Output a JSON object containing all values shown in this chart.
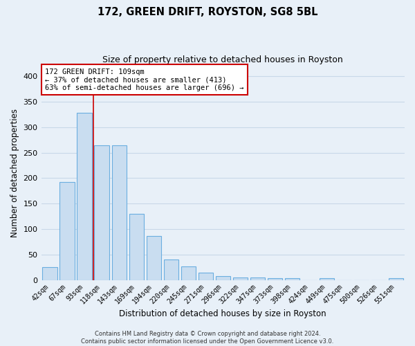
{
  "title1": "172, GREEN DRIFT, ROYSTON, SG8 5BL",
  "title2": "Size of property relative to detached houses in Royston",
  "xlabel": "Distribution of detached houses by size in Royston",
  "ylabel": "Number of detached properties",
  "bin_labels": [
    "42sqm",
    "67sqm",
    "93sqm",
    "118sqm",
    "143sqm",
    "169sqm",
    "194sqm",
    "220sqm",
    "245sqm",
    "271sqm",
    "296sqm",
    "322sqm",
    "347sqm",
    "373sqm",
    "398sqm",
    "424sqm",
    "449sqm",
    "475sqm",
    "500sqm",
    "526sqm",
    "551sqm"
  ],
  "bar_heights": [
    25,
    193,
    328,
    265,
    265,
    130,
    86,
    40,
    27,
    15,
    8,
    5,
    5,
    3,
    3,
    0,
    4,
    0,
    0,
    0,
    4
  ],
  "bar_color": "#c9ddf0",
  "bar_edge_color": "#6aaee0",
  "bar_width": 0.85,
  "ylim": [
    0,
    420
  ],
  "yticks": [
    0,
    50,
    100,
    150,
    200,
    250,
    300,
    350,
    400
  ],
  "annotation_text": "172 GREEN DRIFT: 109sqm\n← 37% of detached houses are smaller (413)\n63% of semi-detached houses are larger (696) →",
  "annotation_box_color": "#ffffff",
  "annotation_box_edge": "#cc0000",
  "vline_x": 2.5,
  "vline_color": "#cc0000",
  "grid_color": "#c8d8e8",
  "footer_text": "Contains HM Land Registry data © Crown copyright and database right 2024.\nContains public sector information licensed under the Open Government Licence v3.0.",
  "bg_color": "#e8f0f8"
}
